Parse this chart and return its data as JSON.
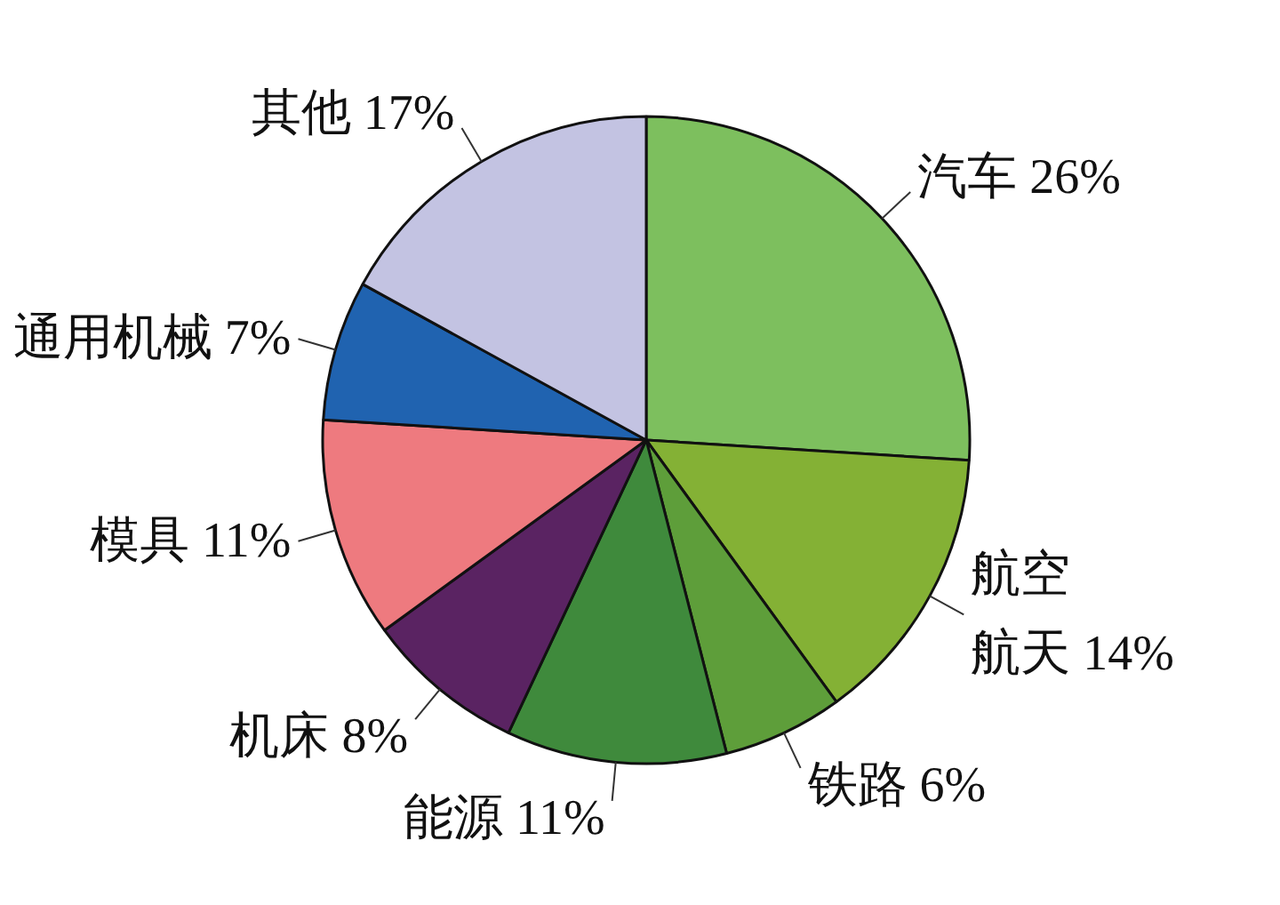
{
  "chart_data": {
    "type": "pie",
    "categories": [
      "汽车",
      "航空航天",
      "铁路",
      "能源",
      "机床",
      "模具",
      "通用机械",
      "其他"
    ],
    "values": [
      26,
      14,
      6,
      11,
      8,
      11,
      7,
      17
    ],
    "value_labels": [
      "26%",
      "14%",
      "6%",
      "11%",
      "8%",
      "11%",
      "7%",
      "17%"
    ],
    "colors": [
      "#7dbf5e",
      "#84b135",
      "#5e9e3a",
      "#3f8a3c",
      "#5a2362",
      "#ee7a7f",
      "#2063b0",
      "#c3c3e2"
    ]
  }
}
